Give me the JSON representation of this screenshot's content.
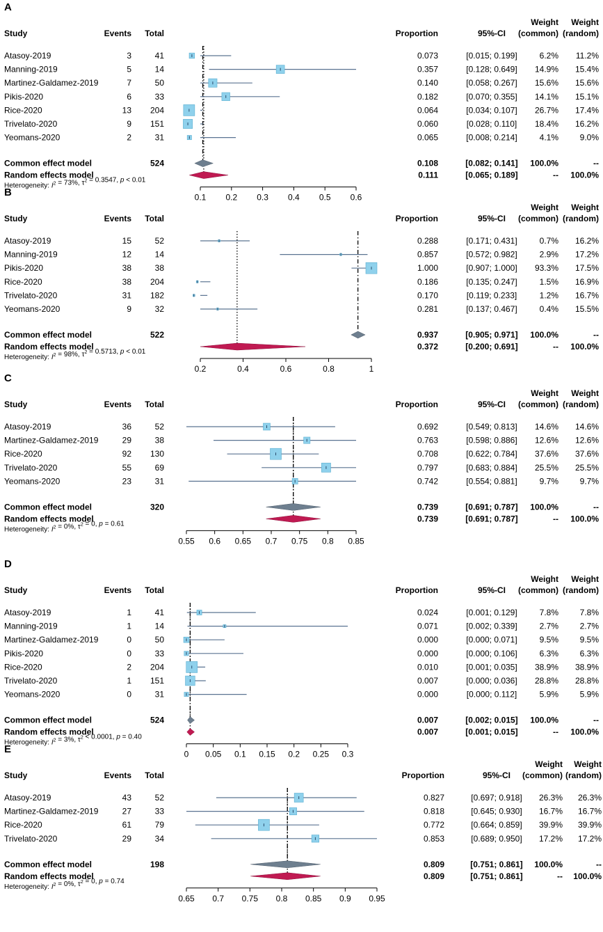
{
  "headers": {
    "study": "Study",
    "events": "Events",
    "total": "Total",
    "proportion": "Proportion",
    "ci": "95%-CI",
    "weight": "Weight",
    "common": "(common)",
    "random": "(random)"
  },
  "colors": {
    "box": "#8fd1ec",
    "box_stroke": "#5aaed0",
    "ci_line": "#5a7391",
    "common_diamond": "#6e7f8f",
    "random_diamond": "#c01a52"
  },
  "chart_data": [
    {
      "type": "forest",
      "panel": "A",
      "xlim": [
        0.05,
        0.6
      ],
      "ticks": [
        0.1,
        0.2,
        0.3,
        0.4,
        0.5,
        0.6
      ],
      "tick_labels": [
        "0.1",
        "0.2",
        "0.3",
        "0.4",
        "0.5",
        "0.6"
      ],
      "studies": [
        {
          "study": "Atasoy-2019",
          "events": "3",
          "total": "41",
          "prop": 0.073,
          "lo": 0.015,
          "hi": 0.199,
          "prop_text": "0.073",
          "ci_text": "[0.015; 0.199]",
          "wc": "6.2%",
          "wr": "11.2%"
        },
        {
          "study": "Manning-2019",
          "events": "5",
          "total": "14",
          "prop": 0.357,
          "lo": 0.128,
          "hi": 0.649,
          "prop_text": "0.357",
          "ci_text": "[0.128; 0.649]",
          "wc": "14.9%",
          "wr": "15.4%"
        },
        {
          "study": "Martinez-Galdamez-2019",
          "events": "7",
          "total": "50",
          "prop": 0.14,
          "lo": 0.058,
          "hi": 0.267,
          "prop_text": "0.140",
          "ci_text": "[0.058; 0.267]",
          "wc": "15.6%",
          "wr": "15.6%"
        },
        {
          "study": "Pikis-2020",
          "events": "6",
          "total": "33",
          "prop": 0.182,
          "lo": 0.07,
          "hi": 0.355,
          "prop_text": "0.182",
          "ci_text": "[0.070; 0.355]",
          "wc": "14.1%",
          "wr": "15.1%"
        },
        {
          "study": "Rice-2020",
          "events": "13",
          "total": "204",
          "prop": 0.064,
          "lo": 0.034,
          "hi": 0.107,
          "prop_text": "0.064",
          "ci_text": "[0.034; 0.107]",
          "wc": "26.7%",
          "wr": "17.4%"
        },
        {
          "study": "Trivelato-2020",
          "events": "9",
          "total": "151",
          "prop": 0.06,
          "lo": 0.028,
          "hi": 0.11,
          "prop_text": "0.060",
          "ci_text": "[0.028; 0.110]",
          "wc": "18.4%",
          "wr": "16.2%"
        },
        {
          "study": "Yeomans-2020",
          "events": "2",
          "total": "31",
          "prop": 0.065,
          "lo": 0.008,
          "hi": 0.214,
          "prop_text": "0.065",
          "ci_text": "[0.008; 0.214]",
          "wc": "4.1%",
          "wr": "9.0%"
        }
      ],
      "common": {
        "label": "Common effect model",
        "total": "524",
        "est": 0.108,
        "lo": 0.082,
        "hi": 0.141,
        "prop_text": "0.108",
        "ci_text": "[0.082; 0.141]",
        "wc": "100.0%",
        "wr": "--"
      },
      "random": {
        "label": "Random effects model",
        "est": 0.111,
        "lo": 0.065,
        "hi": 0.189,
        "prop_text": "0.111",
        "ci_text": "[0.065; 0.189]",
        "wc": "--",
        "wr": "100.0%"
      },
      "het": {
        "i2": "73%",
        "tau2": "= 0.3547",
        "p": "< 0.01"
      }
    },
    {
      "type": "forest",
      "panel": "B",
      "xlim": [
        0.15,
        1.0
      ],
      "ticks": [
        0.2,
        0.4,
        0.6,
        0.8,
        1.0
      ],
      "tick_labels": [
        "0.2",
        "0.4",
        "0.6",
        "0.8",
        "1"
      ],
      "studies": [
        {
          "study": "Atasoy-2019",
          "events": "15",
          "total": "52",
          "prop": 0.288,
          "lo": 0.171,
          "hi": 0.431,
          "prop_text": "0.288",
          "ci_text": "[0.171; 0.431]",
          "wc": "0.7%",
          "wr": "16.2%"
        },
        {
          "study": "Manning-2019",
          "events": "12",
          "total": "14",
          "prop": 0.857,
          "lo": 0.572,
          "hi": 0.982,
          "prop_text": "0.857",
          "ci_text": "[0.572; 0.982]",
          "wc": "2.9%",
          "wr": "17.2%"
        },
        {
          "study": "Pikis-2020",
          "events": "38",
          "total": "38",
          "prop": 1.0,
          "lo": 0.907,
          "hi": 1.0,
          "prop_text": "1.000",
          "ci_text": "[0.907; 1.000]",
          "wc": "93.3%",
          "wr": "17.5%"
        },
        {
          "study": "Rice-2020",
          "events": "38",
          "total": "204",
          "prop": 0.186,
          "lo": 0.135,
          "hi": 0.247,
          "prop_text": "0.186",
          "ci_text": "[0.135; 0.247]",
          "wc": "1.5%",
          "wr": "16.9%"
        },
        {
          "study": "Trivelato-2020",
          "events": "31",
          "total": "182",
          "prop": 0.17,
          "lo": 0.119,
          "hi": 0.233,
          "prop_text": "0.170",
          "ci_text": "[0.119; 0.233]",
          "wc": "1.2%",
          "wr": "16.7%"
        },
        {
          "study": "Yeomans-2020",
          "events": "9",
          "total": "32",
          "prop": 0.281,
          "lo": 0.137,
          "hi": 0.467,
          "prop_text": "0.281",
          "ci_text": "[0.137; 0.467]",
          "wc": "0.4%",
          "wr": "15.5%"
        }
      ],
      "common": {
        "label": "Common effect model",
        "total": "522",
        "est": 0.937,
        "lo": 0.905,
        "hi": 0.971,
        "prop_text": "0.937",
        "ci_text": "[0.905; 0.971]",
        "wc": "100.0%",
        "wr": "--"
      },
      "random": {
        "label": "Random effects model",
        "est": 0.372,
        "lo": 0.2,
        "hi": 0.691,
        "prop_text": "0.372",
        "ci_text": "[0.200; 0.691]",
        "wc": "--",
        "wr": "100.0%"
      },
      "het": {
        "i2": "98%",
        "tau2": "= 0.5713",
        "p": "< 0.01"
      }
    },
    {
      "type": "forest",
      "panel": "C",
      "xlim": [
        0.55,
        0.85
      ],
      "ticks": [
        0.55,
        0.6,
        0.65,
        0.7,
        0.75,
        0.8,
        0.85
      ],
      "tick_labels": [
        "0.55",
        "0.6",
        "0.65",
        "0.7",
        "0.75",
        "0.8",
        "0.85"
      ],
      "studies": [
        {
          "study": "Atasoy-2019",
          "events": "36",
          "total": "52",
          "prop": 0.692,
          "lo": 0.549,
          "hi": 0.813,
          "prop_text": "0.692",
          "ci_text": "[0.549; 0.813]",
          "wc": "14.6%",
          "wr": "14.6%"
        },
        {
          "study": "Martinez-Galdamez-2019",
          "events": "29",
          "total": "38",
          "prop": 0.763,
          "lo": 0.598,
          "hi": 0.886,
          "prop_text": "0.763",
          "ci_text": "[0.598; 0.886]",
          "wc": "12.6%",
          "wr": "12.6%"
        },
        {
          "study": "Rice-2020",
          "events": "92",
          "total": "130",
          "prop": 0.708,
          "lo": 0.622,
          "hi": 0.784,
          "prop_text": "0.708",
          "ci_text": "[0.622; 0.784]",
          "wc": "37.6%",
          "wr": "37.6%"
        },
        {
          "study": "Trivelato-2020",
          "events": "55",
          "total": "69",
          "prop": 0.797,
          "lo": 0.683,
          "hi": 0.884,
          "prop_text": "0.797",
          "ci_text": "[0.683; 0.884]",
          "wc": "25.5%",
          "wr": "25.5%"
        },
        {
          "study": "Yeomans-2020",
          "events": "23",
          "total": "31",
          "prop": 0.742,
          "lo": 0.554,
          "hi": 0.881,
          "prop_text": "0.742",
          "ci_text": "[0.554; 0.881]",
          "wc": "9.7%",
          "wr": "9.7%"
        }
      ],
      "common": {
        "label": "Common effect model",
        "total": "320",
        "est": 0.739,
        "lo": 0.691,
        "hi": 0.787,
        "prop_text": "0.739",
        "ci_text": "[0.691; 0.787]",
        "wc": "100.0%",
        "wr": "--"
      },
      "random": {
        "label": "Random effects model",
        "est": 0.739,
        "lo": 0.691,
        "hi": 0.787,
        "prop_text": "0.739",
        "ci_text": "[0.691; 0.787]",
        "wc": "--",
        "wr": "100.0%"
      },
      "het": {
        "i2": "0%",
        "tau2": "= 0",
        "p": "= 0.61"
      }
    },
    {
      "type": "forest",
      "panel": "D",
      "xlim": [
        0,
        0.3
      ],
      "ticks": [
        0,
        0.05,
        0.1,
        0.15,
        0.2,
        0.25,
        0.3
      ],
      "tick_labels": [
        "0",
        "0.05",
        "0.1",
        "0.15",
        "0.2",
        "0.25",
        "0.3"
      ],
      "studies": [
        {
          "study": "Atasoy-2019",
          "events": "1",
          "total": "41",
          "prop": 0.024,
          "lo": 0.001,
          "hi": 0.129,
          "prop_text": "0.024",
          "ci_text": "[0.001; 0.129]",
          "wc": "7.8%",
          "wr": "7.8%"
        },
        {
          "study": "Manning-2019",
          "events": "1",
          "total": "14",
          "prop": 0.071,
          "lo": 0.002,
          "hi": 0.339,
          "prop_text": "0.071",
          "ci_text": "[0.002; 0.339]",
          "wc": "2.7%",
          "wr": "2.7%"
        },
        {
          "study": "Martinez-Galdamez-2019",
          "events": "0",
          "total": "50",
          "prop": 0.0,
          "lo": 0.0,
          "hi": 0.071,
          "prop_text": "0.000",
          "ci_text": "[0.000; 0.071]",
          "wc": "9.5%",
          "wr": "9.5%"
        },
        {
          "study": "Pikis-2020",
          "events": "0",
          "total": "33",
          "prop": 0.0,
          "lo": 0.0,
          "hi": 0.106,
          "prop_text": "0.000",
          "ci_text": "[0.000; 0.106]",
          "wc": "6.3%",
          "wr": "6.3%"
        },
        {
          "study": "Rice-2020",
          "events": "2",
          "total": "204",
          "prop": 0.01,
          "lo": 0.001,
          "hi": 0.035,
          "prop_text": "0.010",
          "ci_text": "[0.001; 0.035]",
          "wc": "38.9%",
          "wr": "38.9%"
        },
        {
          "study": "Trivelato-2020",
          "events": "1",
          "total": "151",
          "prop": 0.007,
          "lo": 0.0,
          "hi": 0.036,
          "prop_text": "0.007",
          "ci_text": "[0.000; 0.036]",
          "wc": "28.8%",
          "wr": "28.8%"
        },
        {
          "study": "Yeomans-2020",
          "events": "0",
          "total": "31",
          "prop": 0.0,
          "lo": 0.0,
          "hi": 0.112,
          "prop_text": "0.000",
          "ci_text": "[0.000; 0.112]",
          "wc": "5.9%",
          "wr": "5.9%"
        }
      ],
      "common": {
        "label": "Common effect model",
        "total": "524",
        "est": 0.007,
        "lo": 0.002,
        "hi": 0.015,
        "prop_text": "0.007",
        "ci_text": "[0.002; 0.015]",
        "wc": "100.0%",
        "wr": "--"
      },
      "random": {
        "label": "Random effects model",
        "est": 0.007,
        "lo": 0.001,
        "hi": 0.015,
        "prop_text": "0.007",
        "ci_text": "[0.001; 0.015]",
        "wc": "--",
        "wr": "100.0%"
      },
      "het": {
        "i2": "3%",
        "tau2": "< 0.0001",
        "p": "= 0.40"
      }
    },
    {
      "type": "forest",
      "panel": "E",
      "xlim": [
        0.65,
        0.95
      ],
      "ticks": [
        0.65,
        0.7,
        0.75,
        0.8,
        0.85,
        0.9,
        0.95
      ],
      "tick_labels": [
        "0.65",
        "0.7",
        "0.75",
        "0.8",
        "0.85",
        "0.9",
        "0.95"
      ],
      "studies": [
        {
          "study": "Atasoy-2019",
          "events": "43",
          "total": "52",
          "prop": 0.827,
          "lo": 0.697,
          "hi": 0.918,
          "prop_text": "0.827",
          "ci_text": "[0.697; 0.918]",
          "wc": "26.3%",
          "wr": "26.3%"
        },
        {
          "study": "Martinez-Galdamez-2019",
          "events": "27",
          "total": "33",
          "prop": 0.818,
          "lo": 0.645,
          "hi": 0.93,
          "prop_text": "0.818",
          "ci_text": "[0.645; 0.930]",
          "wc": "16.7%",
          "wr": "16.7%"
        },
        {
          "study": "Rice-2020",
          "events": "61",
          "total": "79",
          "prop": 0.772,
          "lo": 0.664,
          "hi": 0.859,
          "prop_text": "0.772",
          "ci_text": "[0.664; 0.859]",
          "wc": "39.9%",
          "wr": "39.9%"
        },
        {
          "study": "Trivelato-2020",
          "events": "29",
          "total": "34",
          "prop": 0.853,
          "lo": 0.689,
          "hi": 0.95,
          "prop_text": "0.853",
          "ci_text": "[0.689; 0.950]",
          "wc": "17.2%",
          "wr": "17.2%"
        }
      ],
      "common": {
        "label": "Common effect model",
        "total": "198",
        "est": 0.809,
        "lo": 0.751,
        "hi": 0.861,
        "prop_text": "0.809",
        "ci_text": "[0.751; 0.861]",
        "wc": "100.0%",
        "wr": "--"
      },
      "random": {
        "label": "Random effects model",
        "est": 0.809,
        "lo": 0.751,
        "hi": 0.861,
        "prop_text": "0.809",
        "ci_text": "[0.751; 0.861]",
        "wc": "--",
        "wr": "100.0%"
      },
      "het": {
        "i2": "0%",
        "tau2": "= 0",
        "p": "= 0.74"
      }
    }
  ]
}
